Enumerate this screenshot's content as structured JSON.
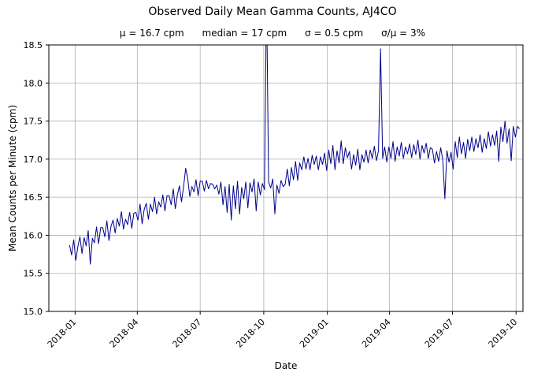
{
  "chart_data": {
    "type": "line",
    "title": "Observed Daily Mean Gamma Counts, AJ4CO",
    "subtitle": "μ = 16.7 cpm      median = 17 cpm      σ = 0.5 cpm      σ/μ = 3%",
    "stats": {
      "mu": "16.7 cpm",
      "median": "17 cpm",
      "sigma": "0.5 cpm",
      "sigma_over_mu": "3%"
    },
    "xlabel": "Date",
    "ylabel": "Mean Counts per Minute (cpm)",
    "ylim": [
      15.0,
      18.5
    ],
    "yticks": [
      "15.0",
      "15.5",
      "16.0",
      "16.5",
      "17.0",
      "17.5",
      "18.0",
      "18.5"
    ],
    "xticks": [
      {
        "label": "2018-01",
        "date": "2018-01-01"
      },
      {
        "label": "2018-04",
        "date": "2018-04-01"
      },
      {
        "label": "2018-07",
        "date": "2018-07-01"
      },
      {
        "label": "2018-10",
        "date": "2018-10-01"
      },
      {
        "label": "2019-01",
        "date": "2019-01-01"
      },
      {
        "label": "2019-04",
        "date": "2019-04-01"
      },
      {
        "label": "2019-07",
        "date": "2019-07-01"
      },
      {
        "label": "2019-10",
        "date": "2019-10-01"
      }
    ],
    "x_range": [
      "2017-11-24",
      "2019-10-11"
    ],
    "grid": true,
    "grid_color": "#b0b0b0",
    "line_color": "#00008b",
    "series": [
      {
        "start_date": "2017-12-24",
        "step_days": 3,
        "values": [
          15.87,
          15.74,
          15.94,
          15.67,
          15.85,
          15.98,
          15.76,
          15.97,
          15.86,
          16.06,
          15.62,
          15.96,
          15.9,
          16.11,
          15.89,
          16.1,
          16.1,
          15.98,
          16.19,
          15.93,
          16.12,
          16.2,
          16.03,
          16.22,
          16.12,
          16.31,
          16.08,
          16.21,
          16.14,
          16.3,
          16.09,
          16.29,
          16.3,
          16.2,
          16.41,
          16.15,
          16.34,
          16.42,
          16.21,
          16.41,
          16.31,
          16.5,
          16.28,
          16.44,
          16.37,
          16.53,
          16.32,
          16.52,
          16.52,
          16.4,
          16.61,
          16.35,
          16.53,
          16.65,
          16.44,
          16.64,
          16.88,
          16.74,
          16.51,
          16.64,
          16.57,
          16.73,
          16.52,
          16.71,
          16.71,
          16.58,
          16.72,
          16.61,
          16.68,
          16.67,
          16.61,
          16.66,
          16.54,
          16.7,
          16.4,
          16.64,
          16.3,
          16.67,
          16.2,
          16.65,
          16.35,
          16.71,
          16.28,
          16.63,
          16.48,
          16.7,
          16.36,
          16.69,
          16.57,
          16.74,
          16.32,
          16.7,
          16.53,
          16.68,
          16.6,
          19.2,
          16.7,
          16.62,
          16.74,
          16.28,
          16.66,
          16.55,
          16.72,
          16.64,
          16.67,
          16.87,
          16.65,
          16.89,
          16.73,
          16.97,
          16.72,
          16.95,
          16.86,
          17.03,
          16.87,
          17.01,
          16.86,
          17.05,
          16.93,
          17.04,
          16.86,
          17.03,
          16.93,
          17.08,
          16.85,
          17.12,
          16.94,
          17.18,
          16.86,
          17.11,
          16.95,
          17.24,
          16.94,
          17.15,
          17.02,
          17.1,
          16.87,
          17.06,
          16.92,
          17.13,
          16.86,
          17.06,
          16.96,
          17.12,
          16.95,
          17.12,
          17.01,
          17.17,
          16.98,
          17.11,
          18.45,
          17.01,
          17.16,
          16.96,
          17.16,
          17.01,
          17.23,
          16.97,
          17.16,
          17.04,
          17.22,
          17.01,
          17.16,
          17.07,
          17.2,
          17.02,
          17.19,
          17.06,
          17.25,
          17.0,
          17.18,
          17.08,
          17.21,
          17.01,
          17.15,
          17.13,
          16.95,
          17.1,
          16.97,
          17.15,
          16.99,
          16.48,
          17.11,
          16.96,
          17.09,
          16.87,
          17.23,
          17.02,
          17.29,
          17.07,
          17.22,
          17.01,
          17.26,
          17.11,
          17.29,
          17.1,
          17.27,
          17.15,
          17.32,
          17.09,
          17.27,
          17.14,
          17.36,
          17.17,
          17.32,
          17.18,
          17.37,
          16.97,
          17.42,
          17.23,
          17.5,
          17.21,
          17.4,
          16.98,
          17.43,
          17.29,
          17.43,
          17.4
        ]
      }
    ]
  }
}
